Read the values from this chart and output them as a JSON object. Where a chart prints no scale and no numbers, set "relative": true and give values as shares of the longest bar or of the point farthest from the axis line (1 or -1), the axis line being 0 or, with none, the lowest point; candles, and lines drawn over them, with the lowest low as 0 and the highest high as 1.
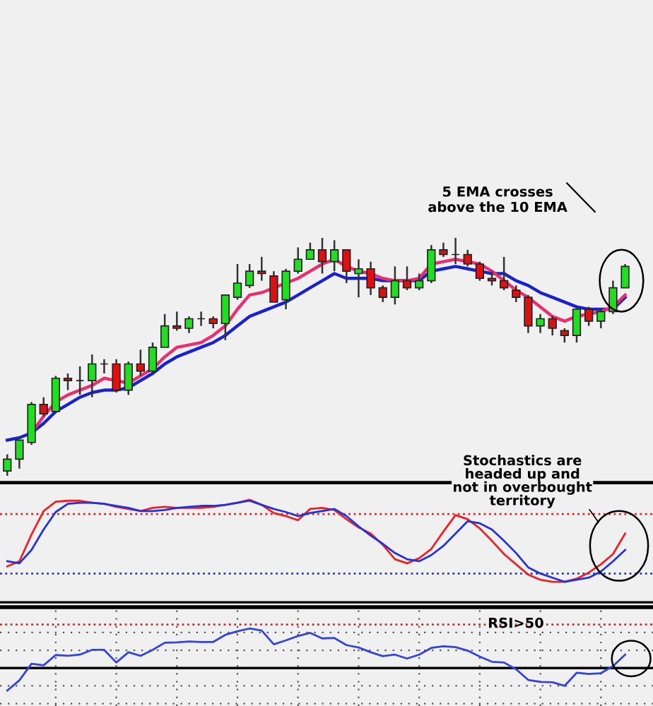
{
  "chart_data": [
    {
      "type": "candlestick",
      "relative": true,
      "categories": [
        null,
        null,
        null,
        null,
        null,
        null,
        null,
        null,
        null,
        null,
        null,
        null,
        null,
        null,
        null,
        null,
        null,
        null,
        null,
        null,
        null,
        null,
        null,
        null,
        null,
        null,
        null,
        null,
        null,
        null,
        null,
        null,
        null,
        null,
        null,
        null,
        null,
        null,
        null,
        null,
        null,
        null,
        null,
        null,
        null,
        null,
        null,
        null,
        null,
        null,
        null,
        null
      ],
      "ohlc": [
        [
          0.02,
          0.09,
          0,
          0.07
        ],
        [
          0.07,
          0.15,
          0.03,
          0.15
        ],
        [
          0.14,
          0.31,
          0.13,
          0.3
        ],
        [
          0.3,
          0.33,
          0.25,
          0.26
        ],
        [
          0.27,
          0.42,
          0.27,
          0.41
        ],
        [
          0.41,
          0.43,
          0.36,
          0.4
        ],
        [
          0.4,
          0.46,
          0.34,
          0.4
        ],
        [
          0.4,
          0.51,
          0.33,
          0.47
        ],
        [
          0.47,
          0.49,
          0.43,
          0.47
        ],
        [
          0.47,
          0.49,
          0.35,
          0.36
        ],
        [
          0.36,
          0.48,
          0.34,
          0.47
        ],
        [
          0.47,
          0.53,
          0.42,
          0.44
        ],
        [
          0.44,
          0.56,
          0.43,
          0.54
        ],
        [
          0.54,
          0.68,
          0.54,
          0.63
        ],
        [
          0.63,
          0.69,
          0.61,
          0.62
        ],
        [
          0.62,
          0.67,
          0.6,
          0.66
        ],
        [
          0.66,
          0.69,
          0.63,
          0.66
        ],
        [
          0.66,
          0.67,
          0.62,
          0.64
        ],
        [
          0.64,
          0.76,
          0.57,
          0.76
        ],
        [
          0.75,
          0.89,
          0.74,
          0.81
        ],
        [
          0.8,
          0.89,
          0.79,
          0.86
        ],
        [
          0.86,
          0.92,
          0.82,
          0.85
        ],
        [
          0.84,
          0.86,
          0.73,
          0.73
        ],
        [
          0.74,
          0.87,
          0.7,
          0.86
        ],
        [
          0.86,
          0.96,
          0.85,
          0.91
        ],
        [
          0.91,
          0.98,
          0.91,
          0.95
        ],
        [
          0.95,
          1.0,
          0.85,
          0.9
        ],
        [
          0.9,
          0.99,
          0.86,
          0.95
        ],
        [
          0.95,
          0.95,
          0.81,
          0.86
        ],
        [
          0.85,
          0.91,
          0.75,
          0.87
        ],
        [
          0.87,
          0.9,
          0.76,
          0.79
        ],
        [
          0.79,
          0.8,
          0.73,
          0.75
        ],
        [
          0.75,
          0.88,
          0.72,
          0.82
        ],
        [
          0.82,
          0.88,
          0.78,
          0.79
        ],
        [
          0.79,
          0.85,
          0.78,
          0.82
        ],
        [
          0.82,
          0.97,
          0.81,
          0.95
        ],
        [
          0.95,
          0.98,
          0.92,
          0.93
        ],
        [
          0.93,
          1.0,
          0.89,
          0.93
        ],
        [
          0.93,
          0.95,
          0.88,
          0.89
        ],
        [
          0.89,
          0.9,
          0.82,
          0.83
        ],
        [
          0.83,
          0.86,
          0.8,
          0.82
        ],
        [
          0.82,
          0.92,
          0.78,
          0.79
        ],
        [
          0.78,
          0.8,
          0.73,
          0.75
        ],
        [
          0.75,
          0.76,
          0.6,
          0.63
        ],
        [
          0.63,
          0.68,
          0.6,
          0.66
        ],
        [
          0.66,
          0.67,
          0.59,
          0.62
        ],
        [
          0.61,
          0.62,
          0.56,
          0.59
        ],
        [
          0.59,
          0.71,
          0.56,
          0.7
        ],
        [
          0.7,
          0.71,
          0.63,
          0.65
        ],
        [
          0.65,
          0.7,
          0.62,
          0.69
        ],
        [
          0.69,
          0.82,
          0.68,
          0.79
        ],
        [
          0.79,
          0.89,
          0.79,
          0.88
        ]
      ],
      "colors": [
        "#22dd22",
        "#22dd22",
        "#22dd22",
        "#dd1111",
        "#22dd22",
        "#dd1111",
        "#222222",
        "#22dd22",
        "#222222",
        "#dd1111",
        "#22dd22",
        "#dd1111",
        "#22dd22",
        "#22dd22",
        "#dd1111",
        "#22dd22",
        "#222222",
        "#dd1111",
        "#22dd22",
        "#22dd22",
        "#22dd22",
        "#dd1111",
        "#dd1111",
        "#22dd22",
        "#22dd22",
        "#22dd22",
        "#dd1111",
        "#22dd22",
        "#dd1111",
        "#22dd22",
        "#dd1111",
        "#dd1111",
        "#22dd22",
        "#dd1111",
        "#22dd22",
        "#22dd22",
        "#dd1111",
        "#222222",
        "#dd1111",
        "#dd1111",
        "#dd1111",
        "#dd1111",
        "#dd1111",
        "#dd1111",
        "#22dd22",
        "#dd1111",
        "#dd1111",
        "#22dd22",
        "#dd1111",
        "#22dd22",
        "#22dd22",
        "#22dd22"
      ],
      "series": [
        {
          "type": "line",
          "color": "#1a22cc",
          "values": [
            0.15,
            0.16,
            0.18,
            0.22,
            0.27,
            0.3,
            0.33,
            0.35,
            0.36,
            0.36,
            0.37,
            0.4,
            0.43,
            0.47,
            0.5,
            0.52,
            0.54,
            0.56,
            0.59,
            0.63,
            0.67,
            0.69,
            0.71,
            0.73,
            0.76,
            0.79,
            0.82,
            0.85,
            0.83,
            0.83,
            0.83,
            0.82,
            0.82,
            0.82,
            0.82,
            0.86,
            0.87,
            0.88,
            0.87,
            0.86,
            0.85,
            0.85,
            0.82,
            0.8,
            0.77,
            0.75,
            0.73,
            0.71,
            0.7,
            0.7,
            0.7,
            0.75
          ]
        },
        {
          "type": "line",
          "color": "#e8306e",
          "values": [
            null,
            null,
            0.18,
            0.25,
            0.31,
            0.34,
            0.36,
            0.38,
            0.41,
            0.4,
            0.39,
            0.42,
            0.45,
            0.5,
            0.54,
            0.55,
            0.56,
            0.59,
            0.63,
            0.7,
            0.76,
            0.77,
            0.79,
            0.81,
            0.83,
            0.86,
            0.89,
            0.91,
            0.88,
            0.86,
            0.85,
            0.83,
            0.82,
            0.82,
            0.83,
            0.89,
            0.9,
            0.91,
            0.9,
            0.89,
            0.86,
            0.82,
            0.78,
            0.75,
            0.71,
            0.67,
            0.65,
            0.67,
            0.68,
            0.69,
            0.71,
            0.76
          ]
        }
      ],
      "annotations": [
        "5 EMA crosses\nabove the 10 EMA"
      ]
    },
    {
      "type": "line",
      "relative": true,
      "categories": [
        null,
        null,
        null,
        null,
        null,
        null,
        null,
        null,
        null,
        null,
        null,
        null,
        null,
        null,
        null,
        null,
        null,
        null,
        null,
        null,
        null,
        null,
        null,
        null,
        null,
        null,
        null,
        null,
        null,
        null,
        null,
        null,
        null,
        null,
        null,
        null,
        null,
        null,
        null,
        null,
        null,
        null,
        null,
        null,
        null,
        null,
        null,
        null,
        null,
        null,
        null,
        null
      ],
      "series": [
        {
          "color": "#ee2222",
          "values": [
            0.35,
            0.4,
            0.66,
            0.89,
            0.98,
            0.99,
            0.99,
            0.97,
            0.96,
            0.93,
            0.91,
            0.89,
            0.92,
            0.93,
            0.92,
            0.92,
            0.92,
            0.93,
            0.95,
            0.97,
            1.0,
            0.95,
            0.87,
            0.84,
            0.8,
            0.91,
            0.92,
            0.9,
            0.81,
            0.73,
            0.67,
            0.56,
            0.42,
            0.38,
            0.43,
            0.52,
            0.69,
            0.85,
            0.81,
            0.72,
            0.6,
            0.47,
            0.37,
            0.27,
            0.22,
            0.2,
            0.2,
            0.23,
            0.29,
            0.37,
            0.47,
            0.67
          ]
        },
        {
          "color": "#2233dd",
          "values": [
            0.4,
            0.38,
            0.51,
            0.71,
            0.88,
            0.96,
            0.97,
            0.97,
            0.96,
            0.94,
            0.92,
            0.89,
            0.89,
            0.9,
            0.92,
            0.93,
            0.94,
            0.94,
            0.95,
            0.97,
            0.99,
            0.95,
            0.91,
            0.88,
            0.84,
            0.87,
            0.89,
            0.91,
            0.84,
            0.74,
            0.65,
            0.57,
            0.48,
            0.42,
            0.4,
            0.46,
            0.55,
            0.67,
            0.79,
            0.77,
            0.71,
            0.6,
            0.48,
            0.34,
            0.28,
            0.24,
            0.2,
            0.22,
            0.24,
            0.3,
            0.4,
            0.51
          ]
        }
      ],
      "ref_lines": [
        {
          "axis": "y",
          "value": 0.86,
          "color": "#dd2222",
          "line_style": "dotted"
        },
        {
          "axis": "y",
          "value": 0.28,
          "color": "#2233dd",
          "line_style": "dotted"
        }
      ],
      "annotations": [
        "Stochastics are\nheaded up and\nnot in overbought\nterritory"
      ]
    },
    {
      "type": "line",
      "relative": true,
      "grid": true,
      "categories": [
        null,
        null,
        null,
        null,
        null,
        null,
        null,
        null,
        null,
        null,
        null,
        null,
        null,
        null,
        null,
        null,
        null,
        null,
        null,
        null,
        null,
        null,
        null,
        null,
        null,
        null,
        null,
        null,
        null,
        null,
        null,
        null,
        null,
        null,
        null,
        null,
        null,
        null,
        null,
        null,
        null,
        null,
        null,
        null,
        null,
        null,
        null,
        null,
        null,
        null,
        null,
        null
      ],
      "series": [
        {
          "color": "#3344dd",
          "values": [
            -0.57,
            -0.31,
            0.11,
            0.07,
            0.33,
            0.31,
            0.34,
            0.46,
            0.46,
            0.14,
            0.4,
            0.31,
            0.46,
            0.64,
            0.65,
            0.67,
            0.66,
            0.66,
            0.84,
            0.93,
            1.0,
            0.95,
            0.6,
            0.7,
            0.81,
            0.89,
            0.75,
            0.76,
            0.58,
            0.52,
            0.4,
            0.3,
            0.34,
            0.24,
            0.34,
            0.51,
            0.55,
            0.53,
            0.44,
            0.29,
            0.16,
            0.14,
            -0.03,
            -0.3,
            -0.35,
            -0.36,
            -0.45,
            -0.12,
            -0.15,
            -0.13,
            0.05,
            0.34
          ]
        }
      ],
      "ref_lines": [
        {
          "axis": "y",
          "value": 1.1,
          "color": "#dd2222",
          "line_style": "dotted"
        }
      ],
      "annotations": [
        "RSI>50"
      ]
    }
  ]
}
